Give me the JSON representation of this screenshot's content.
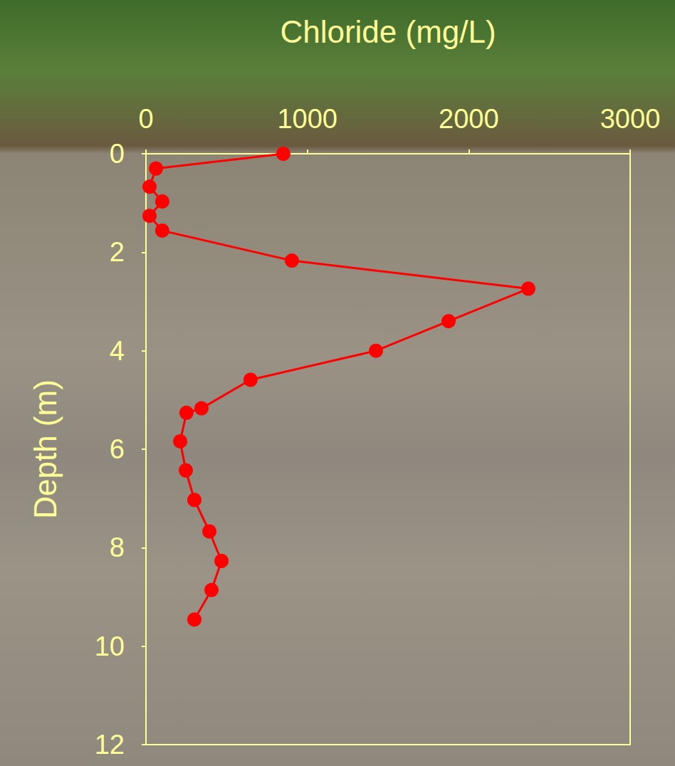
{
  "chart_data": {
    "type": "line",
    "x_label": "Chloride (mg/L)",
    "y_label": "Depth (m)",
    "x": [
      851,
      62,
      22,
      101,
      22,
      101,
      904,
      2369,
      1875,
      1425,
      648,
      344,
      251,
      212,
      247,
      300,
      393,
      468,
      406,
      300
    ],
    "values": [
      0,
      0.3,
      0.67,
      0.97,
      1.26,
      1.56,
      2.17,
      2.74,
      3.4,
      4.0,
      4.59,
      5.17,
      5.26,
      5.84,
      6.43,
      7.03,
      7.67,
      8.27,
      8.86,
      9.46
    ],
    "color": "#ff0000",
    "marker": "circle",
    "xlim": [
      0,
      3000
    ],
    "xticks": [
      0,
      1000,
      2000,
      3000
    ],
    "ylim": [
      0,
      12
    ],
    "yticks": [
      0,
      2,
      4,
      6,
      8,
      10,
      12
    ],
    "grid": false
  }
}
